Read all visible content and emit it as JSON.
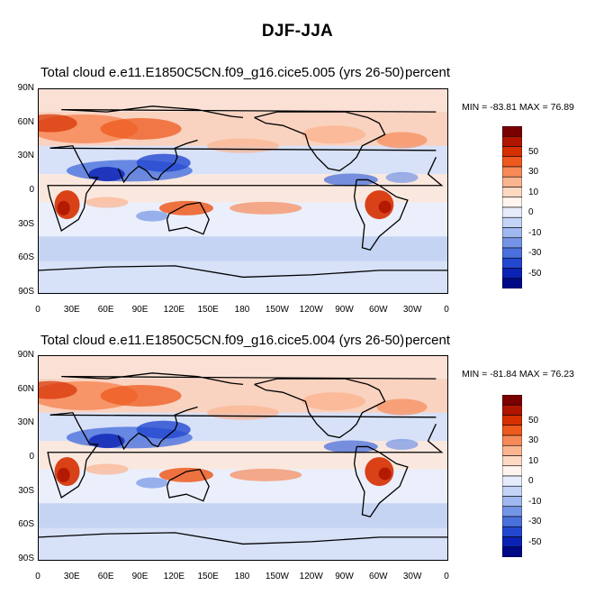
{
  "title": "DJF-JJA",
  "panels": [
    {
      "variable": "Total cloud",
      "case": "e.e11.E1850C5CN.f09_g16.cice5.005 (yrs 26-50)",
      "units": "percent",
      "min": "-83.81",
      "max": "76.89",
      "minmax_text": "MIN = -83.81 MAX =  76.89"
    },
    {
      "variable": "Total cloud",
      "case": "e.e11.E1850C5CN.f09_g16.cice5.004 (yrs 26-50)",
      "units": "percent",
      "min": "-81.84",
      "max": "76.23",
      "minmax_text": "MIN = -81.84 MAX =  76.23"
    }
  ],
  "x_ticks": [
    "0",
    "30E",
    "60E",
    "90E",
    "120E",
    "150E",
    "180",
    "150W",
    "120W",
    "90W",
    "60W",
    "30W",
    "0"
  ],
  "y_ticks": [
    "90N",
    "60N",
    "30N",
    "0",
    "30S",
    "60S",
    "90S"
  ],
  "colorbar": {
    "labels": [
      "50",
      "30",
      "10",
      "0",
      "-10",
      "-30",
      "-50"
    ],
    "colors": [
      "#7a0000",
      "#b01500",
      "#d62f00",
      "#ee5a1e",
      "#f78a58",
      "#fbb490",
      "#fdd9c4",
      "#fff4ee",
      "#e6ecfb",
      "#c3d4f6",
      "#9fb8ef",
      "#7495e6",
      "#4a70dc",
      "#2347cf",
      "#0b22b4",
      "#000a86"
    ]
  },
  "chart_data": {
    "type": "heatmap",
    "title": "DJF-JJA",
    "xlabel": "",
    "ylabel": "",
    "x_range": [
      "0",
      "0"
    ],
    "y_range": [
      "90S",
      "90N"
    ],
    "contour_levels": [
      -50,
      -40,
      -30,
      -20,
      -10,
      -5,
      0,
      5,
      10,
      20,
      30,
      40,
      50
    ],
    "panels": [
      {
        "case": "e.e11.E1850C5CN.f09_g16.cice5.005 (yrs 26-50)",
        "min": -83.81,
        "max": 76.89,
        "units": "percent"
      },
      {
        "case": "e.e11.E1850C5CN.f09_g16.cice5.004 (yrs 26-50)",
        "min": -81.84,
        "max": 76.23,
        "units": "percent"
      }
    ]
  }
}
